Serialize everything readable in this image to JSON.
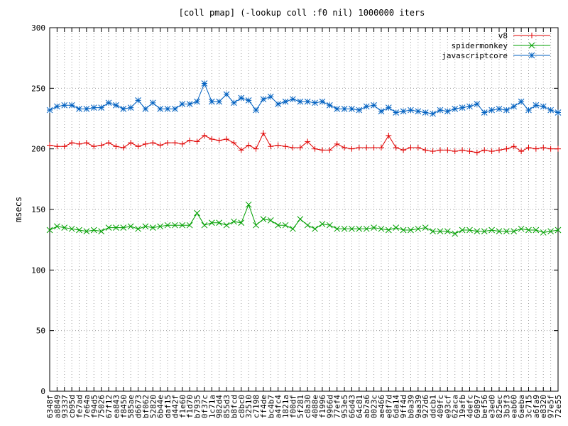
{
  "chart_data": {
    "type": "line",
    "title": "[coll pmap] (-lookup coll :f0 nil) 1000000 iters",
    "xlabel": "",
    "ylabel": "msecs",
    "ylim": [
      0,
      300
    ],
    "yticks": [
      0,
      50,
      100,
      150,
      200,
      250,
      300
    ],
    "grid": true,
    "legend_position": "top-right",
    "categories": [
      "6348f",
      "a8849",
      "93337",
      "cb95d",
      "fe7ad",
      "7e64a",
      "f94d5",
      "75026",
      "67f12",
      "ea843",
      "f8450",
      "585ae",
      "d6673",
      "bf062",
      "52820",
      "6b44e",
      "daf15",
      "d442f",
      "f1e60",
      "f1d70",
      "b7935",
      "0f37c",
      "1c71a",
      "982d4",
      "855d3",
      "b8fcd",
      "c8bc0",
      "32510",
      "c7198",
      "ff4de",
      "bc4b7",
      "a4fc4",
      "1821a",
      "f00df",
      "5f281",
      "c8a30",
      "4088e",
      "f1996",
      "9966d",
      "77ef4",
      "953e5",
      "66d43",
      "64c81",
      "ab7a6",
      "0023c",
      "ae466",
      "e8f7d",
      "6da14",
      "9ff4d",
      "b0a39",
      "9aa39",
      "927d6",
      "ddcb1",
      "409fc",
      "e93cf",
      "62aca",
      "19afb",
      "4defc",
      "69897",
      "bef56",
      "e3ed0",
      "825ec",
      "3b3f3",
      "eab60",
      "6aeba",
      "3c715",
      "a6fa9",
      "e8320",
      "97e5f",
      "72e55"
    ],
    "series": [
      {
        "name": "v8",
        "color": "#e00000",
        "marker": "plus",
        "values": [
          203,
          202,
          202,
          205,
          204,
          205,
          202,
          203,
          205,
          202,
          201,
          205,
          202,
          204,
          205,
          203,
          205,
          205,
          204,
          207,
          206,
          211,
          208,
          207,
          208,
          205,
          199,
          203,
          200,
          213,
          202,
          203,
          202,
          201,
          201,
          206,
          200,
          199,
          199,
          204,
          201,
          200,
          201,
          201,
          201,
          201,
          211,
          201,
          199,
          201,
          201,
          199,
          198,
          199,
          199,
          198,
          199,
          198,
          197,
          199,
          198,
          199,
          200,
          202,
          198,
          201,
          200,
          201,
          200,
          200
        ]
      },
      {
        "name": "spidermonkey",
        "color": "#00a000",
        "marker": "cross",
        "values": [
          133,
          136,
          135,
          134,
          133,
          132,
          133,
          132,
          135,
          135,
          135,
          136,
          134,
          136,
          135,
          136,
          137,
          137,
          137,
          137,
          147,
          137,
          139,
          139,
          137,
          140,
          139,
          154,
          137,
          142,
          141,
          137,
          137,
          134,
          142,
          137,
          134,
          138,
          137,
          134,
          134,
          134,
          134,
          134,
          135,
          134,
          133,
          135,
          133,
          133,
          134,
          135,
          132,
          132,
          132,
          130,
          133,
          133,
          132,
          132,
          133,
          132,
          132,
          132,
          134,
          133,
          133,
          131,
          132,
          133
        ]
      },
      {
        "name": "javascriptcore",
        "color": "#0060c0",
        "marker": "star",
        "values": [
          232,
          235,
          236,
          236,
          233,
          233,
          234,
          234,
          238,
          236,
          233,
          234,
          240,
          233,
          238,
          233,
          233,
          233,
          237,
          237,
          239,
          254,
          239,
          239,
          245,
          238,
          242,
          240,
          232,
          241,
          243,
          237,
          239,
          241,
          239,
          239,
          238,
          239,
          236,
          233,
          233,
          233,
          232,
          235,
          236,
          231,
          234,
          230,
          231,
          232,
          231,
          230,
          229,
          232,
          231,
          233,
          234,
          235,
          237,
          230,
          232,
          233,
          232,
          235,
          239,
          232,
          236,
          235,
          232,
          230
        ]
      }
    ]
  }
}
